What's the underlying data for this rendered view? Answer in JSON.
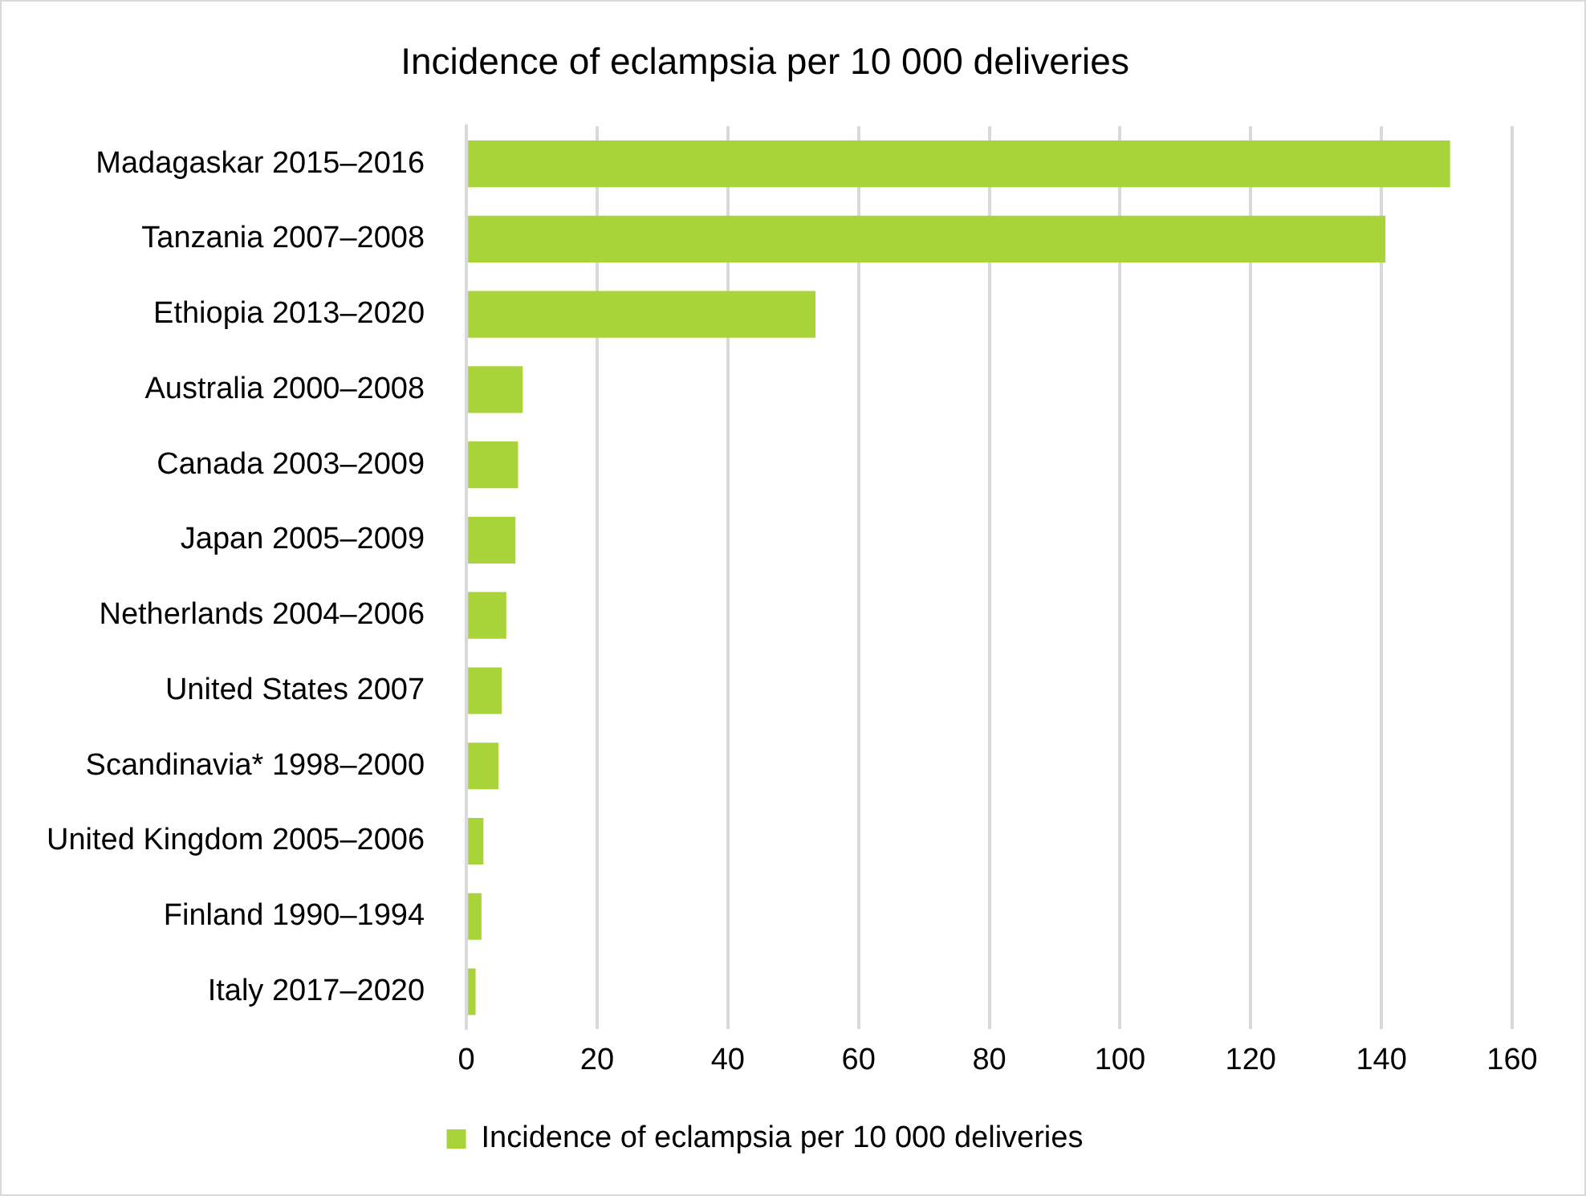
{
  "chart_data": {
    "type": "bar",
    "orientation": "horizontal",
    "title": "Incidence of eclampsia per 10 000 deliveries",
    "categories": [
      "Madagaskar 2015–2016",
      "Tanzania 2007–2008",
      "Ethiopia 2013–2020",
      "Australia 2000–2008",
      "Canada 2003–2009",
      "Japan 2005–2009",
      "Netherlands 2004–2006",
      "United States 2007",
      "Scandinavia* 1998–2000",
      "United Kingdom 2005–2006",
      "Finland 1990–1994",
      "Italy 2017–2020"
    ],
    "series": [
      {
        "name": "Incidence of eclampsia per 10 000 deliveries",
        "color": "#a8d43a",
        "values": [
          150.5,
          140.6,
          53.4,
          8.6,
          7.9,
          7.5,
          6.1,
          5.4,
          4.9,
          2.6,
          2.3,
          1.4
        ]
      }
    ],
    "xlim": [
      0,
      160
    ],
    "xticks": [
      0,
      20,
      40,
      60,
      80,
      100,
      120,
      140,
      160
    ],
    "grid": "x",
    "legend": "bottom"
  }
}
